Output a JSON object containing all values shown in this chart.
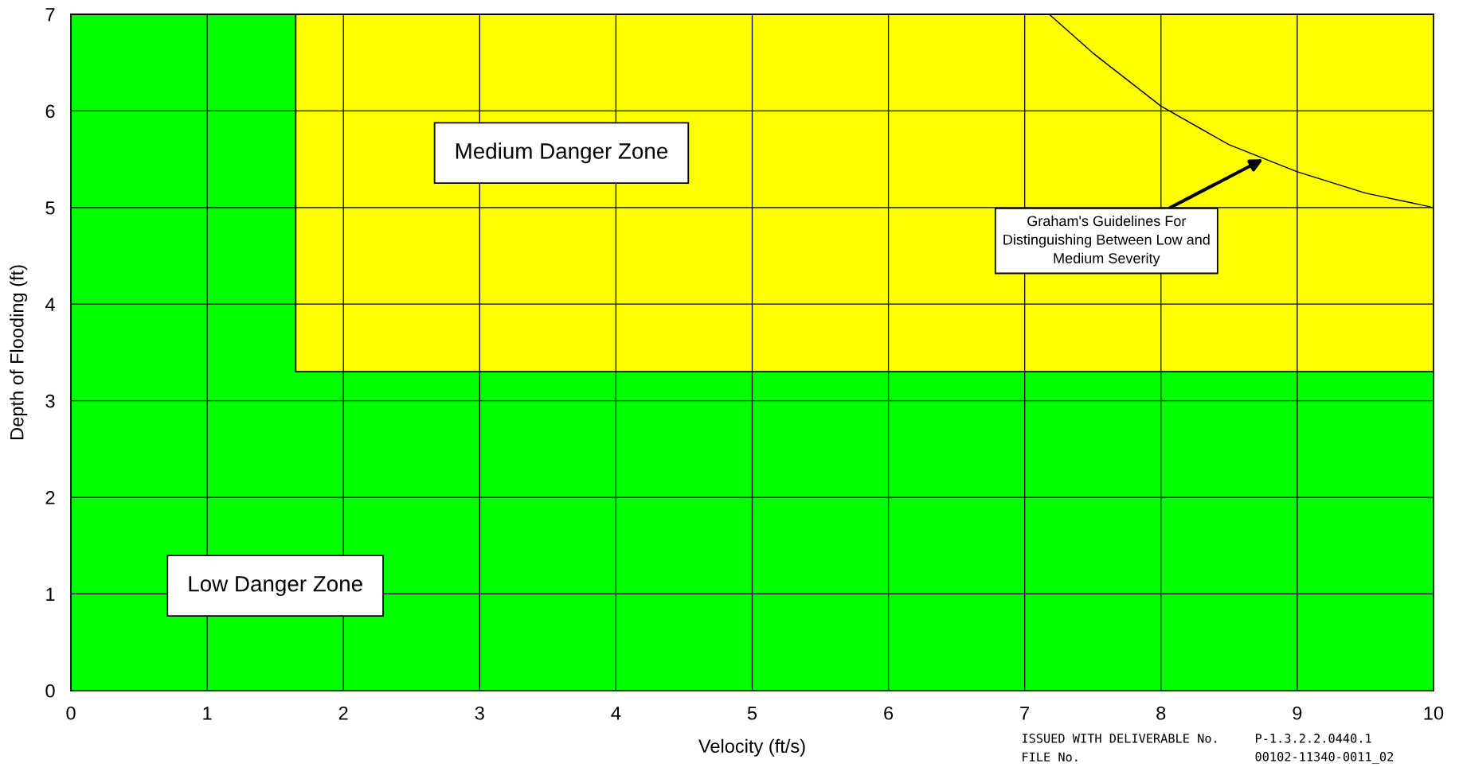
{
  "chart_data": {
    "type": "area",
    "xlabel": "Velocity (ft/s)",
    "ylabel": "Depth of Flooding (ft)",
    "xlim": [
      0,
      10
    ],
    "ylim": [
      0,
      7
    ],
    "xticks": [
      0,
      1,
      2,
      3,
      4,
      5,
      6,
      7,
      8,
      9,
      10
    ],
    "yticks": [
      0,
      1,
      2,
      3,
      4,
      5,
      6,
      7
    ],
    "grid": true,
    "stacked": true,
    "x": [
      0,
      1.65,
      1.65,
      10
    ],
    "series": [
      {
        "color": "#00ff00",
        "values": [
          7,
          7,
          3.3,
          3.3
        ]
      },
      {
        "color": "#ffff00",
        "values": [
          0,
          0,
          3.7,
          3.7
        ]
      },
      {
        "type": "line",
        "color": "#000000",
        "x": [
          7.18,
          7.5,
          8,
          8.5,
          9,
          9.5,
          10
        ],
        "values": [
          7,
          6.6,
          6.05,
          5.65,
          5.37,
          5.15,
          5.0
        ]
      }
    ],
    "annotations": [
      "Medium Danger Zone",
      "Low Danger Zone",
      {
        "text": "Graham's Guidelines For\nDistinguishing Between Low and\nMedium Severity",
        "x": 8.75,
        "y": 5.5
      },
      "ISSUED WITH DELIVERABLE No.",
      "P-1.3.2.2.0440.1",
      "FILE No.",
      "00102-11340-0011_02"
    ]
  }
}
